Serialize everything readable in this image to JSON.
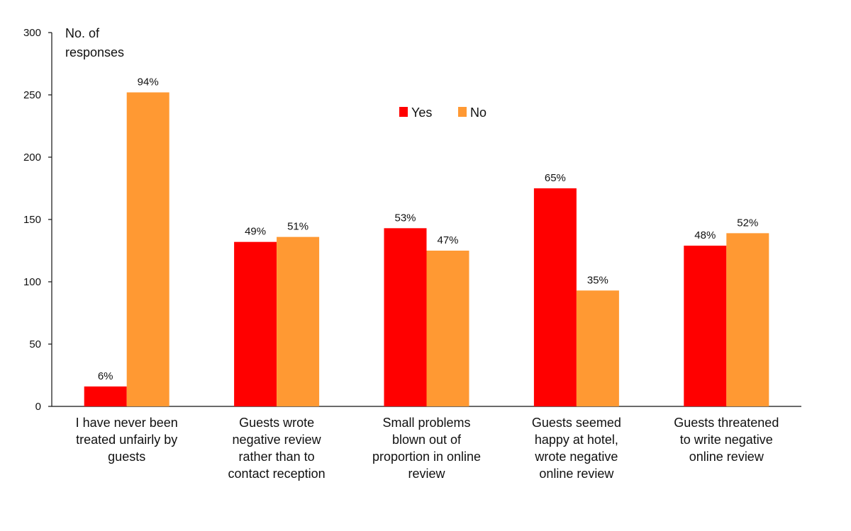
{
  "chart_data": {
    "type": "bar",
    "title": "",
    "ylabel": "No. of responses",
    "ylabel_lines": [
      "No. of",
      "responses"
    ],
    "xlabel": "",
    "ylim": [
      0,
      300
    ],
    "yticks": [
      0,
      50,
      100,
      150,
      200,
      250,
      300
    ],
    "legend_position": "top-center",
    "categories": [
      "I have never been treated unfairly by guests",
      "Guests wrote negative review rather than to contact reception",
      "Small problems blown out of proportion in online review",
      "Guests seemed happy at hotel, wrote negative online review",
      "Guests threatened to write negative online review"
    ],
    "category_lines": [
      [
        "I have never been",
        "treated unfairly by",
        "guests"
      ],
      [
        "Guests wrote",
        "negative review",
        "rather than to",
        "contact reception"
      ],
      [
        "Small problems",
        "blown out of",
        "proportion in online",
        "review"
      ],
      [
        "Guests seemed",
        "happy at hotel,",
        "wrote negative",
        "online review"
      ],
      [
        "Guests threatened",
        "to write negative",
        "online review"
      ]
    ],
    "series": [
      {
        "name": "Yes",
        "color": "#ff0000",
        "values": [
          16,
          132,
          143,
          175,
          129
        ],
        "labels": [
          "6%",
          "49%",
          "53%",
          "65%",
          "48%"
        ]
      },
      {
        "name": "No",
        "color": "#ff9933",
        "values": [
          252,
          136,
          125,
          93,
          139
        ],
        "labels": [
          "94%",
          "51%",
          "47%",
          "35%",
          "52%"
        ]
      }
    ]
  }
}
